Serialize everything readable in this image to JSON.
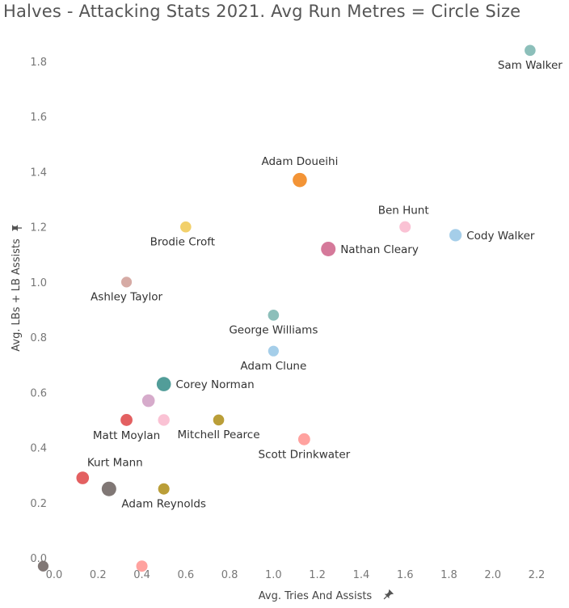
{
  "title": "Halves - Attacking Stats 2021. Avg Run Metres = Circle Size",
  "chart_data": {
    "type": "scatter",
    "title": "Halves - Attacking Stats 2021. Avg Run Metres = Circle Size",
    "xlabel": "Avg. Tries And Assists",
    "ylabel": "Avg. LBs + LB Assists",
    "xlim": [
      -0.05,
      2.35
    ],
    "ylim": [
      -0.03,
      1.9
    ],
    "xticks": [
      "0.0",
      "0.2",
      "0.4",
      "0.6",
      "0.8",
      "1.0",
      "1.2",
      "1.4",
      "1.6",
      "1.8",
      "2.0",
      "2.2"
    ],
    "yticks": [
      "0.0",
      "0.2",
      "0.4",
      "0.6",
      "0.8",
      "1.0",
      "1.2",
      "1.4",
      "1.6",
      "1.8"
    ],
    "grid": false,
    "size_encoding": "Avg Run Metres",
    "points": [
      {
        "name": "Sam Walker",
        "x": 2.17,
        "y": 1.84,
        "color": "#86bcb6",
        "size": 0.45,
        "label_pos": "below-left"
      },
      {
        "name": "Adam Doueihi",
        "x": 1.12,
        "y": 1.37,
        "color": "#f28e2b",
        "size": 0.95,
        "label_pos": "above"
      },
      {
        "name": "Ben Hunt",
        "x": 1.6,
        "y": 1.2,
        "color": "#fabfd2",
        "size": 0.5,
        "label_pos": "above-left"
      },
      {
        "name": "Brodie Croft",
        "x": 0.6,
        "y": 1.2,
        "color": "#f1ce63",
        "size": 0.45,
        "label_pos": "below-left"
      },
      {
        "name": "Cody Walker",
        "x": 1.83,
        "y": 1.17,
        "color": "#a0cbe8",
        "size": 0.65,
        "label_pos": "right"
      },
      {
        "name": "Nathan Cleary",
        "x": 1.25,
        "y": 1.12,
        "color": "#d37295",
        "size": 1.0,
        "label_pos": "right"
      },
      {
        "name": "Ashley Taylor",
        "x": 0.33,
        "y": 1.0,
        "color": "#d4a6a0",
        "size": 0.4,
        "label_pos": "below"
      },
      {
        "name": "George Williams",
        "x": 1.0,
        "y": 0.88,
        "color": "#86bcb6",
        "size": 0.45,
        "label_pos": "below"
      },
      {
        "name": "Adam Clune",
        "x": 1.0,
        "y": 0.75,
        "color": "#a0cbe8",
        "size": 0.4,
        "label_pos": "below"
      },
      {
        "name": "Corey Norman",
        "x": 0.5,
        "y": 0.63,
        "color": "#499894",
        "size": 0.95,
        "label_pos": "right"
      },
      {
        "name": "",
        "x": 0.43,
        "y": 0.57,
        "color": "#d4a6c8",
        "size": 0.7
      },
      {
        "name": "Matt Moylan",
        "x": 0.33,
        "y": 0.5,
        "color": "#e15759",
        "size": 0.6,
        "label_pos": "below"
      },
      {
        "name": "",
        "x": 0.5,
        "y": 0.5,
        "color": "#fabfd2",
        "size": 0.55
      },
      {
        "name": "Mitchell Pearce",
        "x": 0.75,
        "y": 0.5,
        "color": "#b6992d",
        "size": 0.45,
        "label_pos": "below"
      },
      {
        "name": "Scott Drinkwater",
        "x": 1.14,
        "y": 0.43,
        "color": "#ff9d9a",
        "size": 0.6,
        "label_pos": "below"
      },
      {
        "name": "Kurt Mann",
        "x": 0.13,
        "y": 0.29,
        "color": "#e15759",
        "size": 0.7,
        "label_pos": "above-right"
      },
      {
        "name": "",
        "x": 0.25,
        "y": 0.25,
        "color": "#79706e",
        "size": 1.0
      },
      {
        "name": "Adam Reynolds",
        "x": 0.5,
        "y": 0.25,
        "color": "#b6992d",
        "size": 0.5,
        "label_pos": "below"
      },
      {
        "name": "",
        "x": 0.4,
        "y": -0.03,
        "color": "#ff9d9a",
        "size": 0.5
      },
      {
        "name": "",
        "x": -0.05,
        "y": -0.03,
        "color": "#79706e",
        "size": 0.4
      }
    ]
  }
}
